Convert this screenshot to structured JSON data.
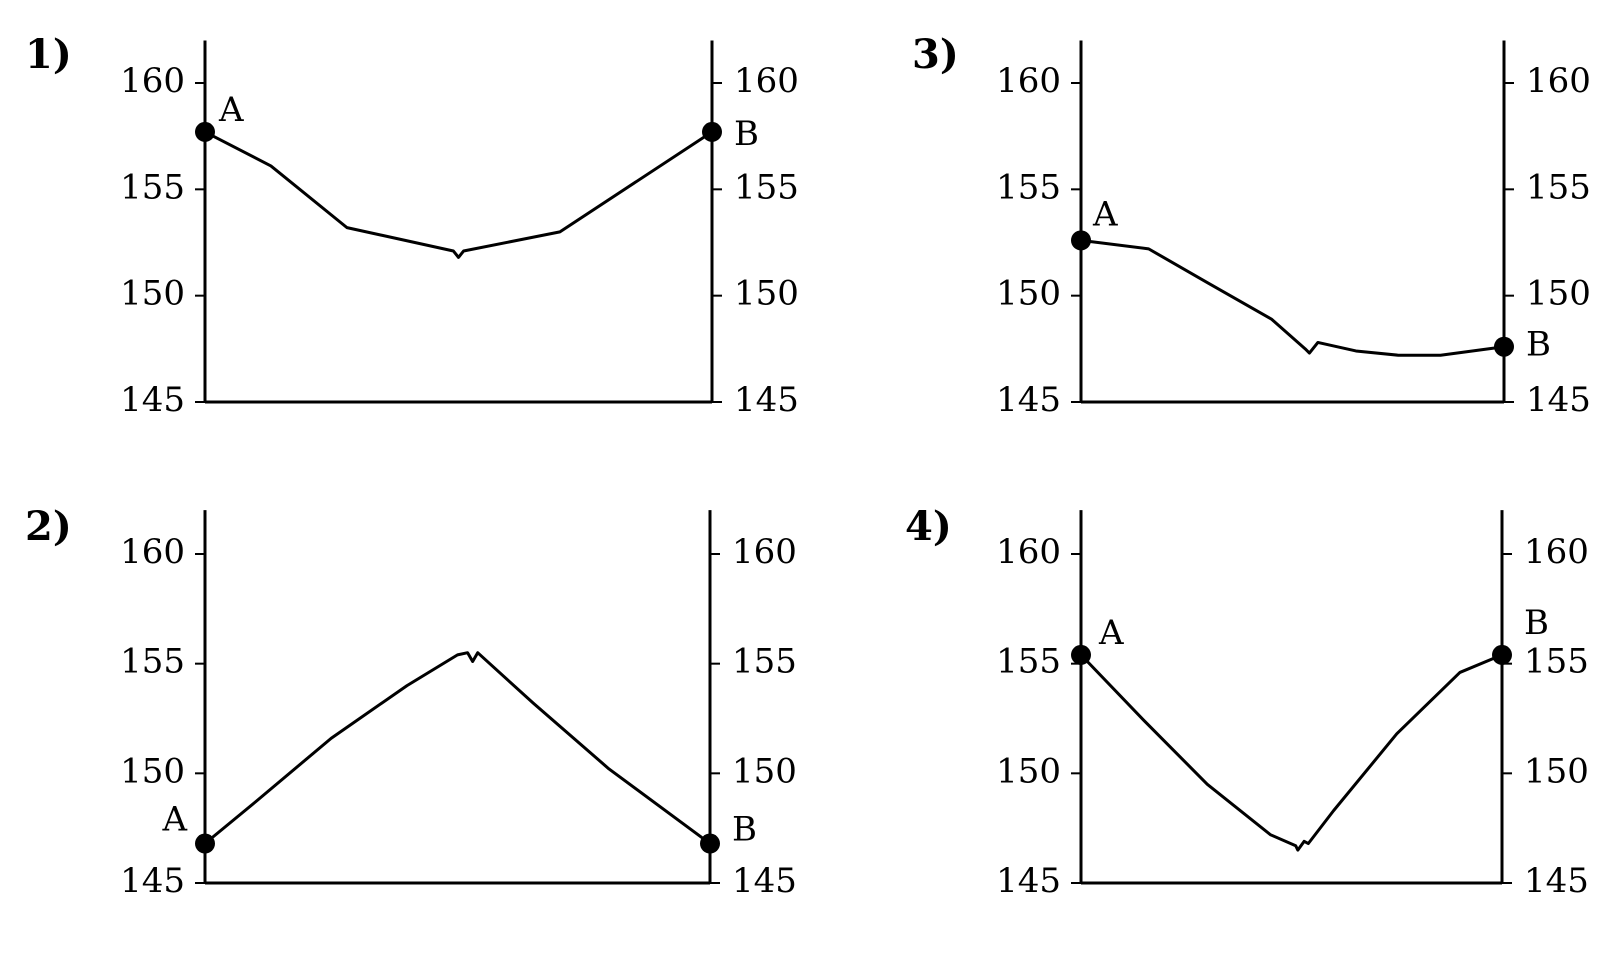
{
  "chart_data": [
    {
      "type": "line",
      "title": "1)",
      "annotations": [
        "A",
        "B"
      ],
      "color": "#000000",
      "x": [
        0,
        13,
        28,
        49,
        50,
        51,
        70,
        100
      ],
      "values": [
        157.7,
        156.1,
        153.2,
        152.1,
        151.8,
        152.1,
        153.0,
        157.7
      ],
      "xlim": [
        0,
        100
      ],
      "ylim": [
        145,
        162
      ],
      "yticks": [
        145,
        150,
        155,
        160
      ]
    },
    {
      "type": "line",
      "title": "2)",
      "annotations": [
        "A",
        "B"
      ],
      "color": "#000000",
      "x": [
        0,
        10,
        25,
        40,
        50,
        52,
        53,
        54,
        65,
        80,
        100
      ],
      "values": [
        146.8,
        148.7,
        151.6,
        154.0,
        155.4,
        155.5,
        155.1,
        155.5,
        153.2,
        150.2,
        146.8
      ],
      "xlim": [
        0,
        100
      ],
      "ylim": [
        145,
        162
      ],
      "yticks": [
        145,
        150,
        155,
        160
      ]
    },
    {
      "type": "line",
      "title": "3)",
      "annotations": [
        "A",
        "B"
      ],
      "color": "#000000",
      "x": [
        0,
        16,
        30,
        45,
        53,
        54,
        56,
        65,
        75,
        85,
        100
      ],
      "values": [
        152.6,
        152.2,
        150.6,
        148.9,
        147.5,
        147.3,
        147.8,
        147.4,
        147.2,
        147.2,
        147.6
      ],
      "xlim": [
        0,
        100
      ],
      "ylim": [
        145,
        162
      ],
      "yticks": [
        145,
        150,
        155,
        160
      ]
    },
    {
      "type": "line",
      "title": "4)",
      "annotations": [
        "A",
        "B"
      ],
      "color": "#000000",
      "x": [
        0,
        15,
        30,
        45,
        51,
        51.5,
        53,
        54,
        60,
        75,
        90,
        100
      ],
      "values": [
        155.4,
        152.4,
        149.5,
        147.2,
        146.7,
        146.5,
        146.9,
        146.8,
        148.3,
        151.8,
        154.6,
        155.4
      ],
      "xlim": [
        0,
        100
      ],
      "ylim": [
        145,
        162
      ],
      "yticks": [
        145,
        150,
        155,
        160
      ]
    }
  ]
}
